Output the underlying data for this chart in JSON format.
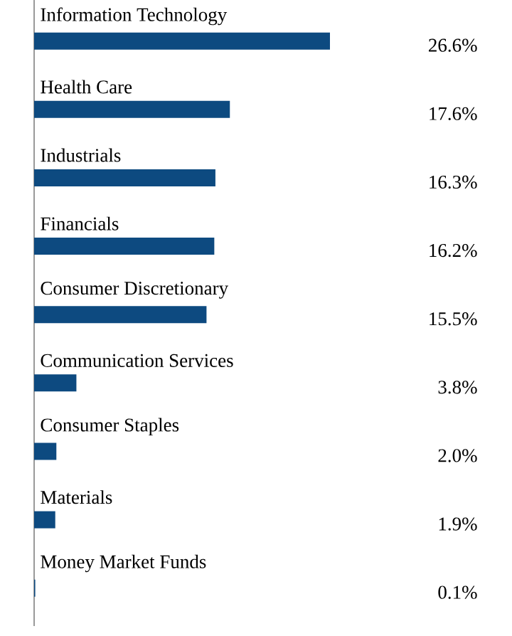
{
  "chart_data": {
    "type": "bar",
    "orientation": "horizontal",
    "categories": [
      "Information Technology",
      "Health Care",
      "Industrials",
      "Financials",
      "Consumer Discretionary",
      "Communication Services",
      "Consumer Staples",
      "Materials",
      "Money Market Funds"
    ],
    "values": [
      26.6,
      17.6,
      16.3,
      16.2,
      15.5,
      3.8,
      2.0,
      1.9,
      0.1
    ],
    "value_labels": [
      "26.6%",
      "17.6%",
      "16.3%",
      "16.2%",
      "15.5%",
      "3.8%",
      "2.0%",
      "1.9%",
      "0.1%"
    ],
    "color": "#0d4a80",
    "tick_labels": false
  }
}
